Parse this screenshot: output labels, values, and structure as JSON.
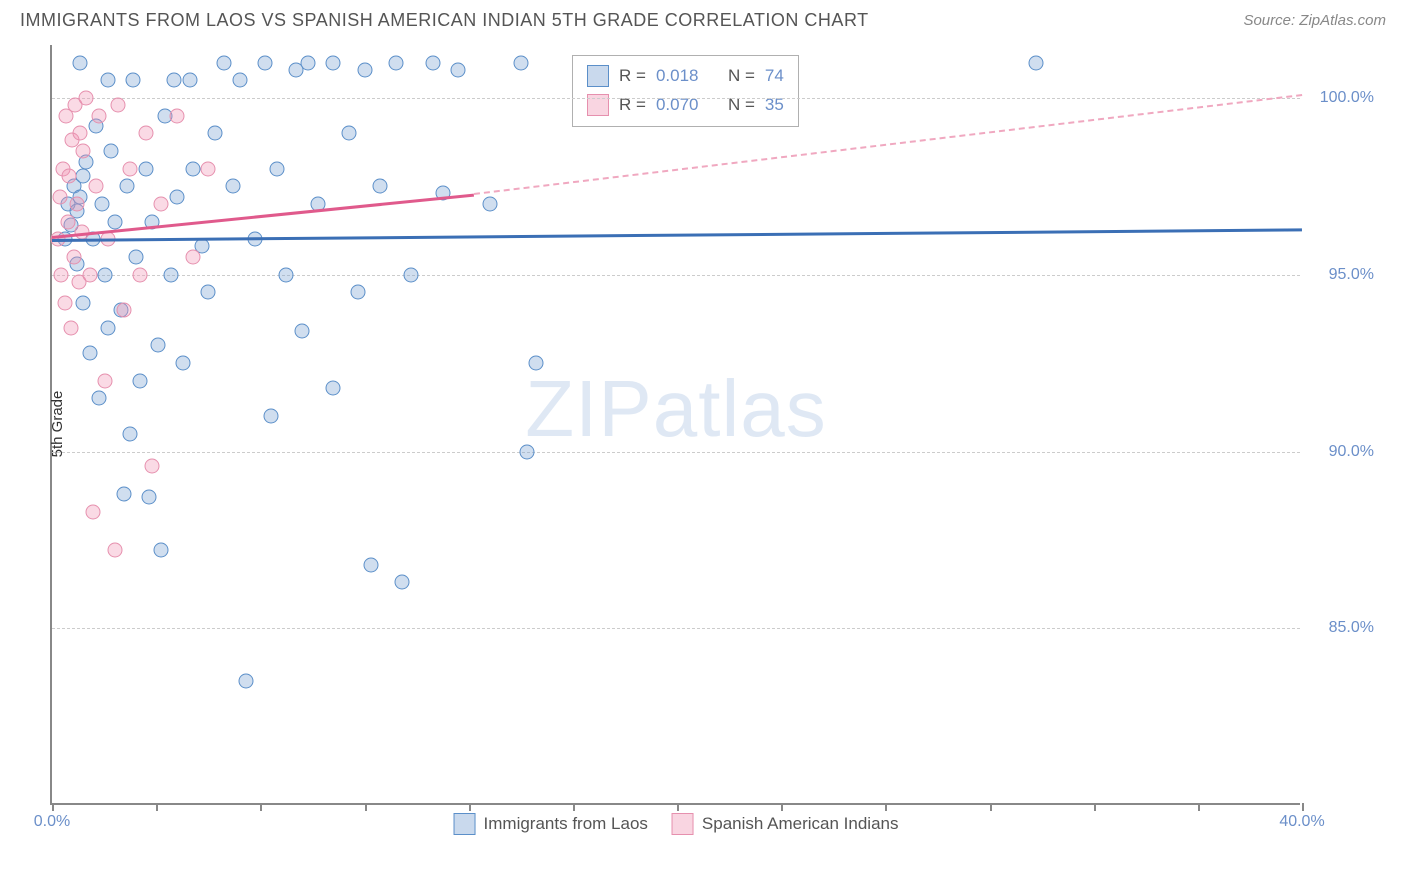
{
  "header": {
    "title": "IMMIGRANTS FROM LAOS VS SPANISH AMERICAN INDIAN 5TH GRADE CORRELATION CHART",
    "source": "Source: ZipAtlas.com"
  },
  "watermark": {
    "zip": "ZIP",
    "atlas": "atlas"
  },
  "chart": {
    "type": "scatter",
    "background_color": "#ffffff",
    "grid_color": "#cccccc",
    "axis_color": "#888888",
    "ylabel": "5th Grade",
    "ylabel_fontsize": 15,
    "xlim": [
      0,
      40
    ],
    "ylim": [
      80,
      101.5
    ],
    "xticks": [
      0,
      10,
      20,
      30,
      40
    ],
    "xtick_labels": [
      "0.0%",
      "",
      "",
      "",
      "40.0%"
    ],
    "xtick_minor": [
      3.33,
      6.67,
      13.33,
      16.67,
      23.33,
      26.67,
      33.33,
      36.67
    ],
    "yticks": [
      85,
      90,
      95,
      100
    ],
    "ytick_labels": [
      "85.0%",
      "90.0%",
      "95.0%",
      "100.0%"
    ],
    "tick_label_color": "#6b8fc9",
    "tick_label_fontsize": 16,
    "marker_size": 15,
    "series": [
      {
        "name": "Immigrants from Laos",
        "color_fill": "rgba(120,160,210,0.35)",
        "color_stroke": "#5b8fc9",
        "r_value": "0.018",
        "n_value": "74",
        "trend": {
          "x1": 0,
          "y1": 96.0,
          "x2": 40,
          "y2": 96.3,
          "color": "#3b6fb5",
          "width": 3,
          "dash": false
        },
        "points": [
          [
            0.4,
            96.0
          ],
          [
            0.5,
            97.0
          ],
          [
            0.6,
            96.4
          ],
          [
            0.7,
            97.5
          ],
          [
            0.8,
            95.3
          ],
          [
            0.8,
            96.8
          ],
          [
            0.9,
            97.2
          ],
          [
            1.0,
            94.2
          ],
          [
            1.0,
            97.8
          ],
          [
            1.1,
            98.2
          ],
          [
            1.2,
            92.8
          ],
          [
            1.3,
            96.0
          ],
          [
            1.4,
            99.2
          ],
          [
            1.5,
            91.5
          ],
          [
            1.6,
            97.0
          ],
          [
            1.7,
            95.0
          ],
          [
            1.8,
            93.5
          ],
          [
            1.9,
            98.5
          ],
          [
            2.0,
            96.5
          ],
          [
            2.2,
            94.0
          ],
          [
            2.3,
            88.8
          ],
          [
            2.4,
            97.5
          ],
          [
            2.5,
            90.5
          ],
          [
            2.6,
            100.5
          ],
          [
            2.7,
            95.5
          ],
          [
            2.8,
            92.0
          ],
          [
            3.0,
            98.0
          ],
          [
            3.1,
            88.7
          ],
          [
            3.2,
            96.5
          ],
          [
            3.4,
            93.0
          ],
          [
            3.5,
            87.2
          ],
          [
            3.6,
            99.5
          ],
          [
            3.8,
            95.0
          ],
          [
            4.0,
            97.2
          ],
          [
            4.2,
            92.5
          ],
          [
            4.4,
            100.5
          ],
          [
            4.5,
            98.0
          ],
          [
            4.8,
            95.8
          ],
          [
            5.0,
            94.5
          ],
          [
            5.2,
            99.0
          ],
          [
            5.5,
            101.0
          ],
          [
            5.8,
            97.5
          ],
          [
            6.0,
            100.5
          ],
          [
            6.2,
            83.5
          ],
          [
            6.5,
            96.0
          ],
          [
            6.8,
            101.0
          ],
          [
            7.0,
            91.0
          ],
          [
            7.2,
            98.0
          ],
          [
            7.5,
            95.0
          ],
          [
            7.8,
            100.8
          ],
          [
            8.0,
            93.4
          ],
          [
            8.2,
            101.0
          ],
          [
            8.5,
            97.0
          ],
          [
            9.0,
            91.8
          ],
          [
            9.5,
            99.0
          ],
          [
            9.8,
            94.5
          ],
          [
            10.0,
            100.8
          ],
          [
            10.2,
            86.8
          ],
          [
            10.5,
            97.5
          ],
          [
            11.0,
            101.0
          ],
          [
            11.2,
            86.3
          ],
          [
            11.5,
            95.0
          ],
          [
            12.2,
            101.0
          ],
          [
            12.5,
            97.3
          ],
          [
            13.0,
            100.8
          ],
          [
            14.0,
            97.0
          ],
          [
            15.0,
            101.0
          ],
          [
            15.2,
            90.0
          ],
          [
            15.5,
            92.5
          ],
          [
            31.5,
            101.0
          ],
          [
            1.8,
            100.5
          ],
          [
            3.9,
            100.5
          ],
          [
            9.0,
            101.0
          ],
          [
            0.9,
            101.0
          ]
        ]
      },
      {
        "name": "Spanish American Indians",
        "color_fill": "rgba(240,150,180,0.35)",
        "color_stroke": "#e690ae",
        "r_value": "0.070",
        "n_value": "35",
        "trend_solid": {
          "x1": 0,
          "y1": 96.1,
          "x2": 13.5,
          "y2": 97.3,
          "color": "#e05a8c",
          "width": 3
        },
        "trend_dash": {
          "x1": 13.5,
          "y1": 97.3,
          "x2": 40,
          "y2": 100.1,
          "color": "#f0a8c0",
          "width": 2.5
        },
        "points": [
          [
            0.2,
            96.0
          ],
          [
            0.25,
            97.2
          ],
          [
            0.3,
            95.0
          ],
          [
            0.35,
            98.0
          ],
          [
            0.4,
            94.2
          ],
          [
            0.45,
            99.5
          ],
          [
            0.5,
            96.5
          ],
          [
            0.55,
            97.8
          ],
          [
            0.6,
            93.5
          ],
          [
            0.65,
            98.8
          ],
          [
            0.7,
            95.5
          ],
          [
            0.75,
            99.8
          ],
          [
            0.8,
            97.0
          ],
          [
            0.85,
            94.8
          ],
          [
            0.9,
            99.0
          ],
          [
            0.95,
            96.2
          ],
          [
            1.0,
            98.5
          ],
          [
            1.1,
            100.0
          ],
          [
            1.2,
            95.0
          ],
          [
            1.3,
            88.3
          ],
          [
            1.4,
            97.5
          ],
          [
            1.5,
            99.5
          ],
          [
            1.7,
            92.0
          ],
          [
            1.8,
            96.0
          ],
          [
            2.0,
            87.2
          ],
          [
            2.1,
            99.8
          ],
          [
            2.3,
            94.0
          ],
          [
            2.5,
            98.0
          ],
          [
            2.8,
            95.0
          ],
          [
            3.0,
            99.0
          ],
          [
            3.2,
            89.6
          ],
          [
            3.5,
            97.0
          ],
          [
            4.0,
            99.5
          ],
          [
            4.5,
            95.5
          ],
          [
            5.0,
            98.0
          ]
        ]
      }
    ],
    "legend_top": {
      "r_prefix": "R  =",
      "n_prefix": "N  ="
    },
    "legend_bottom": [
      {
        "swatch": "blue",
        "label": "Immigrants from Laos"
      },
      {
        "swatch": "pink",
        "label": "Spanish American Indians"
      }
    ]
  }
}
